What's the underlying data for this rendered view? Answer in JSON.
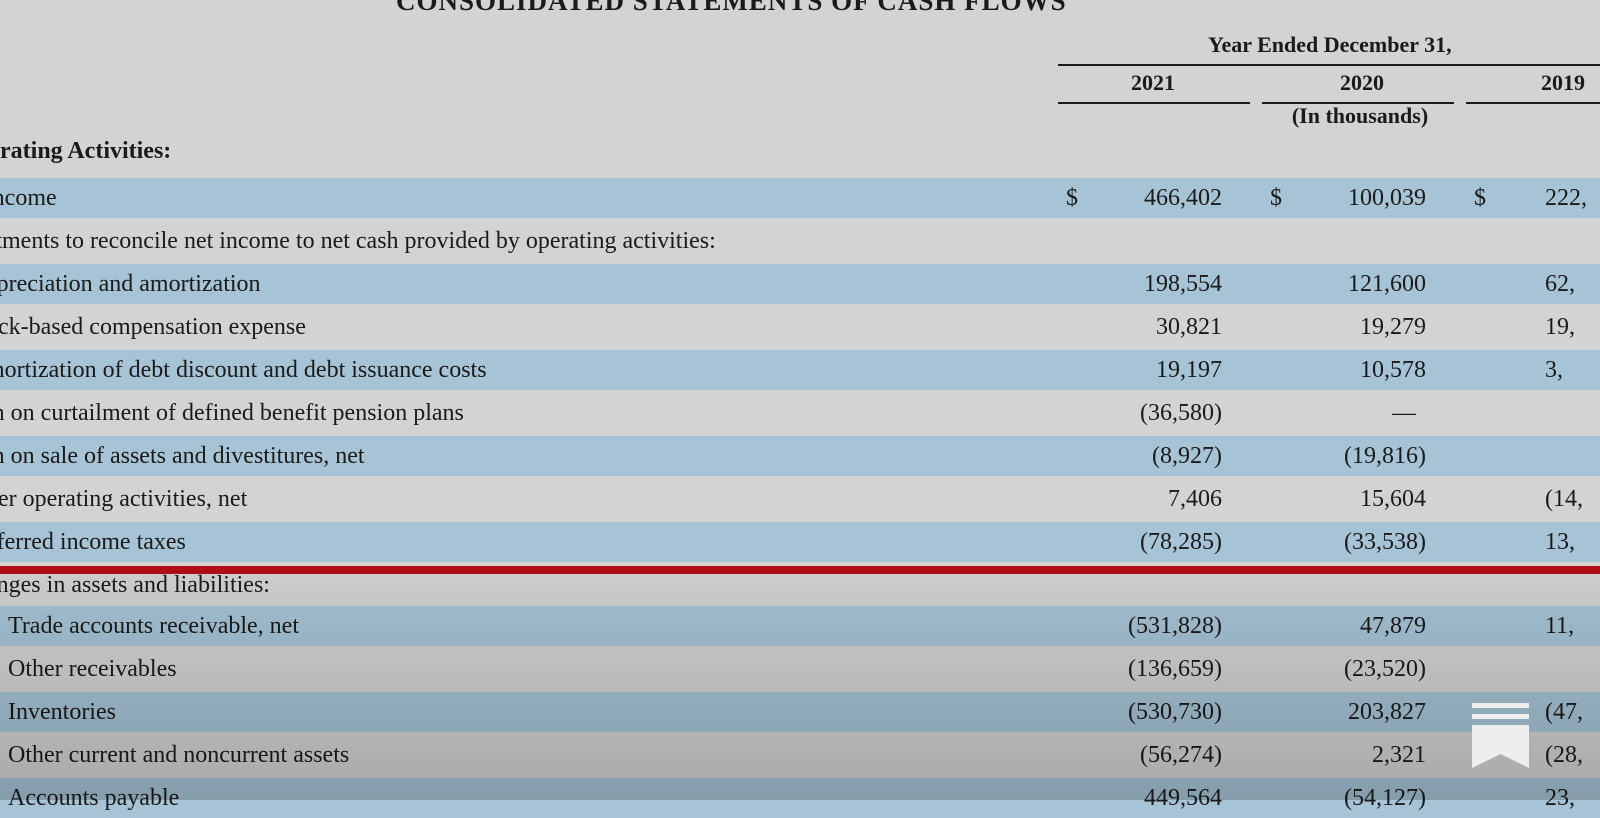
{
  "document": {
    "title": "CONSOLIDATED STATEMENTS OF CASH FLOWS",
    "period_header": "Year Ended December 31,",
    "years": [
      "2021",
      "2020",
      "2019"
    ],
    "units": "(In thousands)",
    "section": "rating Activities:",
    "currency_symbol": "$"
  },
  "rows": [
    {
      "label": "income",
      "v2021": "466,402",
      "v2020": "100,039",
      "v2019": "222,"
    },
    {
      "label": "stments to reconcile net income to net cash provided by operating activities:",
      "v2021": "",
      "v2020": "",
      "v2019": ""
    },
    {
      "label": "epreciation and amortization",
      "v2021": "198,554",
      "v2020": "121,600",
      "v2019": "62,"
    },
    {
      "label": "ock-based compensation expense",
      "v2021": "30,821",
      "v2020": "19,279",
      "v2019": "19,"
    },
    {
      "label": "mortization of debt discount and debt issuance costs",
      "v2021": "19,197",
      "v2020": "10,578",
      "v2019": "3,"
    },
    {
      "label": "in on curtailment of defined benefit pension plans",
      "v2021": "(36,580)",
      "v2020": "—",
      "v2019": ""
    },
    {
      "label": "in on sale of assets and divestitures, net",
      "v2021": "(8,927)",
      "v2020": "(19,816)",
      "v2019": ""
    },
    {
      "label": "her operating activities, net",
      "v2021": "7,406",
      "v2020": "15,604",
      "v2019": "(14,"
    },
    {
      "label": "eferred income taxes",
      "v2021": "(78,285)",
      "v2020": "(33,538)",
      "v2019": "13,"
    },
    {
      "label": "anges in assets and liabilities:",
      "v2021": "",
      "v2020": "",
      "v2019": ""
    },
    {
      "label": "Trade accounts receivable, net",
      "v2021": "(531,828)",
      "v2020": "47,879",
      "v2019": "11,"
    },
    {
      "label": "Other receivables",
      "v2021": "(136,659)",
      "v2020": "(23,520)",
      "v2019": ""
    },
    {
      "label": "Inventories",
      "v2021": "(530,730)",
      "v2020": "203,827",
      "v2019": "(47,"
    },
    {
      "label": "Other current and noncurrent assets",
      "v2021": "(56,274)",
      "v2020": "2,321",
      "v2019": "(28,"
    },
    {
      "label": "Accounts payable",
      "v2021": "449,564",
      "v2020": "(54,127)",
      "v2019": "23,"
    }
  ],
  "icons": {
    "overlay": "bookmark-icon"
  },
  "colors": {
    "highlight_row": "#a6c4d6",
    "plain_row": "#d3d3d3",
    "divider": "#b20d18",
    "text": "#1a1a1a"
  }
}
